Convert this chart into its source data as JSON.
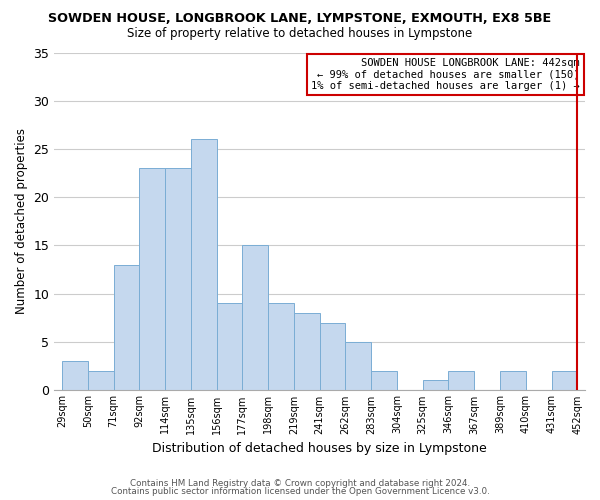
{
  "title": "SOWDEN HOUSE, LONGBROOK LANE, LYMPSTONE, EXMOUTH, EX8 5BE",
  "subtitle": "Size of property relative to detached houses in Lympstone",
  "xlabel": "Distribution of detached houses by size in Lympstone",
  "ylabel": "Number of detached properties",
  "bar_color": "#c5d8ee",
  "bar_edge_color": "#7aadd4",
  "bin_labels": [
    "29sqm",
    "50sqm",
    "71sqm",
    "92sqm",
    "114sqm",
    "135sqm",
    "156sqm",
    "177sqm",
    "198sqm",
    "219sqm",
    "241sqm",
    "262sqm",
    "283sqm",
    "304sqm",
    "325sqm",
    "346sqm",
    "367sqm",
    "389sqm",
    "410sqm",
    "431sqm",
    "452sqm"
  ],
  "bar_heights": [
    3,
    2,
    13,
    23,
    23,
    26,
    9,
    15,
    9,
    8,
    7,
    5,
    2,
    0,
    1,
    2,
    0,
    2,
    0,
    2
  ],
  "ylim": [
    0,
    35
  ],
  "yticks": [
    0,
    5,
    10,
    15,
    20,
    25,
    30,
    35
  ],
  "marker_color": "#cc0000",
  "legend_title": "SOWDEN HOUSE LONGBROOK LANE: 442sqm",
  "legend_line1": "← 99% of detached houses are smaller (150)",
  "legend_line2": "1% of semi-detached houses are larger (1) →",
  "footer1": "Contains HM Land Registry data © Crown copyright and database right 2024.",
  "footer2": "Contains public sector information licensed under the Open Government Licence v3.0.",
  "background_color": "#ffffff",
  "grid_color": "#cccccc"
}
